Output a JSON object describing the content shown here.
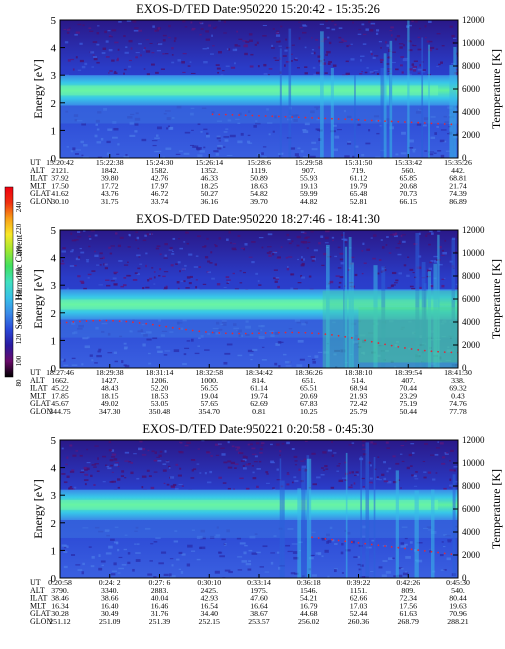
{
  "colorbar": {
    "label": "Second Harmonic Current",
    "ticks": [
      "240",
      "220",
      "200",
      "180",
      "160",
      "140",
      "120",
      "100",
      "80"
    ],
    "colors": [
      "#000000",
      "#6a0a6a",
      "#2a1aa0",
      "#2a48d8",
      "#3a8ae8",
      "#38c0e8",
      "#40e0c0",
      "#40e060",
      "#a0e830",
      "#f8e828",
      "#f8a018",
      "#f03010",
      "#f00010"
    ]
  },
  "panels": [
    {
      "title": "EXOS-D/TED   Date:950220  15:20:42 - 15:35:26",
      "ylabel": "Energy [eV]",
      "y2label": "Temperature [K]",
      "eticks": [
        "0",
        "1",
        "2",
        "3",
        "4",
        "5"
      ],
      "tticks": [
        "0",
        "2000",
        "4000",
        "6000",
        "8000",
        "10000",
        "12000"
      ],
      "band_center": 2.45,
      "rowlabels": [
        "UT",
        "ALT",
        "ILAT",
        "MLT",
        "GLAT",
        "GLON"
      ],
      "columns": [
        [
          "15:20:42",
          "2121.",
          "37.92",
          "17.50",
          "41.62",
          "30.10"
        ],
        [
          "15:22:38",
          "1842.",
          "39.80",
          "17.72",
          "43.76",
          "31.75"
        ],
        [
          "15:24:30",
          "1582.",
          "42.76",
          "17.97",
          "46.72",
          "33.74"
        ],
        [
          "15:26:14",
          "1352.",
          "46.33",
          "18.25",
          "50.27",
          "36.16"
        ],
        [
          "15:28:6",
          "1119.",
          "50.89",
          "18.63",
          "54.82",
          "39.70"
        ],
        [
          "15:29:58",
          "907.",
          "55.93",
          "19.13",
          "59.99",
          "44.82"
        ],
        [
          "15:31:50",
          "719.",
          "61.12",
          "19.79",
          "65.48",
          "52.81"
        ],
        [
          "15:33:42",
          "560.",
          "65.85",
          "20.68",
          "70.73",
          "66.15"
        ],
        [
          "15:35:26",
          "442.",
          "68.81",
          "21.74",
          "74.39",
          "86.89"
        ]
      ]
    },
    {
      "title": "EXOS-D/TED   Date:950220  18:27:46 - 18:41:30",
      "ylabel": "Energy [eV]",
      "y2label": "Temperature [K]",
      "eticks": [
        "0",
        "1",
        "2",
        "3",
        "4",
        "5"
      ],
      "tticks": [
        "0",
        "2000",
        "4000",
        "6000",
        "8000",
        "10000",
        "12000"
      ],
      "band_center": 2.3,
      "rowlabels": [
        "UT",
        "ALT",
        "ILAT",
        "MLT",
        "GLAT",
        "GLON"
      ],
      "columns": [
        [
          "18:27:46",
          "1662.",
          "45.22",
          "17.85",
          "45.67",
          "344.75"
        ],
        [
          "18:29:38",
          "1427.",
          "48.43",
          "18.15",
          "49.02",
          "347.30"
        ],
        [
          "18:31:14",
          "1206.",
          "52.20",
          "18.53",
          "53.05",
          "350.48"
        ],
        [
          "18:32:58",
          "1000.",
          "56.55",
          "19.04",
          "57.65",
          "354.70"
        ],
        [
          "18:34:42",
          "814.",
          "61.14",
          "19.74",
          "62.69",
          "0.81"
        ],
        [
          "18:36:26",
          "651.",
          "65.51",
          "20.69",
          "67.83",
          "10.25"
        ],
        [
          "18:38:10",
          "514.",
          "68.94",
          "21.93",
          "72.42",
          "25.79"
        ],
        [
          "18:39:54",
          "407.",
          "70.44",
          "23.29",
          "75.19",
          "50.44"
        ],
        [
          "18:41:30",
          "338.",
          "69.32",
          "0.43",
          "74.76",
          "77.78"
        ]
      ]
    },
    {
      "title": "EXOS-D/TED   Date:950221   0:20:58 - 0:45:30",
      "ylabel": "Energy [eV]",
      "y2label": "Temperature [K]",
      "eticks": [
        "0",
        "1",
        "2",
        "3",
        "4",
        "5"
      ],
      "tticks": [
        "0",
        "2000",
        "4000",
        "6000",
        "8000",
        "10000",
        "12000"
      ],
      "band_center": 2.65,
      "rowlabels": [
        "UT",
        "ALT",
        "ILAT",
        "MLT",
        "GLAT",
        "GLON"
      ],
      "columns": [
        [
          "0:20:58",
          "3790.",
          "38.46",
          "16.34",
          "30.28",
          "251.12"
        ],
        [
          "0:24: 2",
          "3340.",
          "38.66",
          "16.40",
          "30.49",
          "251.09"
        ],
        [
          "0:27: 6",
          "2883.",
          "40.04",
          "16.46",
          "31.76",
          "251.39"
        ],
        [
          "0:30:10",
          "2425.",
          "42.93",
          "16.54",
          "34.40",
          "252.15"
        ],
        [
          "0:33:14",
          "1975.",
          "47.60",
          "16.64",
          "38.67",
          "253.57"
        ],
        [
          "0:36:18",
          "1546.",
          "54.21",
          "16.79",
          "44.68",
          "256.02"
        ],
        [
          "0:39:22",
          "1151.",
          "62.66",
          "17.03",
          "52.44",
          "260.36"
        ],
        [
          "0:42:26",
          "809.",
          "72.34",
          "17.56",
          "61.63",
          "268.79"
        ],
        [
          "0:45:30",
          "540.",
          "80.44",
          "19.63",
          "70.96",
          "288.21"
        ]
      ]
    }
  ],
  "chart_data": [
    {
      "type": "heatmap",
      "title": "EXOS-D/TED   Date:950220  15:20:42 - 15:35:26",
      "ylabel": "Energy [eV]",
      "y2label": "Temperature [K]",
      "ylim": [
        0,
        5
      ],
      "y2lim": [
        0,
        12000
      ],
      "x": [
        "15:20:42",
        "15:22:38",
        "15:24:30",
        "15:26:14",
        "15:28:6",
        "15:29:58",
        "15:31:50",
        "15:33:42",
        "15:35:26"
      ]
    },
    {
      "type": "heatmap",
      "title": "EXOS-D/TED   Date:950220  18:27:46 - 18:41:30",
      "ylabel": "Energy [eV]",
      "y2label": "Temperature [K]",
      "ylim": [
        0,
        5
      ],
      "y2lim": [
        0,
        12000
      ],
      "x": [
        "18:27:46",
        "18:29:38",
        "18:31:14",
        "18:32:58",
        "18:34:42",
        "18:36:26",
        "18:38:10",
        "18:39:54",
        "18:41:30"
      ]
    },
    {
      "type": "heatmap",
      "title": "EXOS-D/TED   Date:950221   0:20:58 - 0:45:30",
      "ylabel": "Energy [eV]",
      "y2label": "Temperature [K]",
      "ylim": [
        0,
        5
      ],
      "y2lim": [
        0,
        12000
      ],
      "x": [
        "0:20:58",
        "0:24: 2",
        "0:27: 6",
        "0:30:10",
        "0:33:14",
        "0:36:18",
        "0:39:22",
        "0:42:26",
        "0:45:30"
      ]
    }
  ]
}
